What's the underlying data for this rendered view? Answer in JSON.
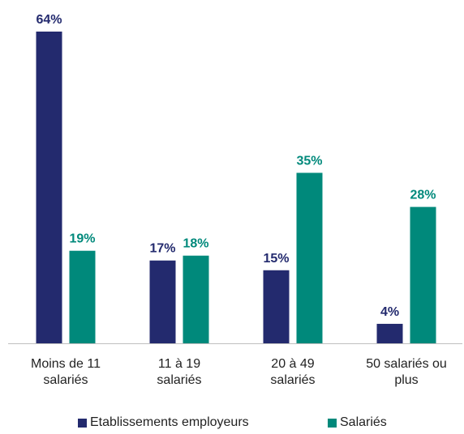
{
  "chart_data": {
    "type": "bar",
    "categories": [
      "Moins de 11 salariés",
      "11 à 19 salariés",
      "20 à 49 salariés",
      "50 salariés ou plus"
    ],
    "series": [
      {
        "name": "Etablissements employeurs",
        "color": "#232a6e",
        "values": [
          64,
          17,
          15,
          4
        ],
        "value_labels": [
          "64%",
          "17%",
          "15%",
          "4%"
        ]
      },
      {
        "name": "Salariés",
        "color": "#00897b",
        "values": [
          19,
          18,
          35,
          28
        ],
        "value_labels": [
          "19%",
          "18%",
          "35%",
          "28%"
        ]
      }
    ],
    "legend": "bottom"
  }
}
